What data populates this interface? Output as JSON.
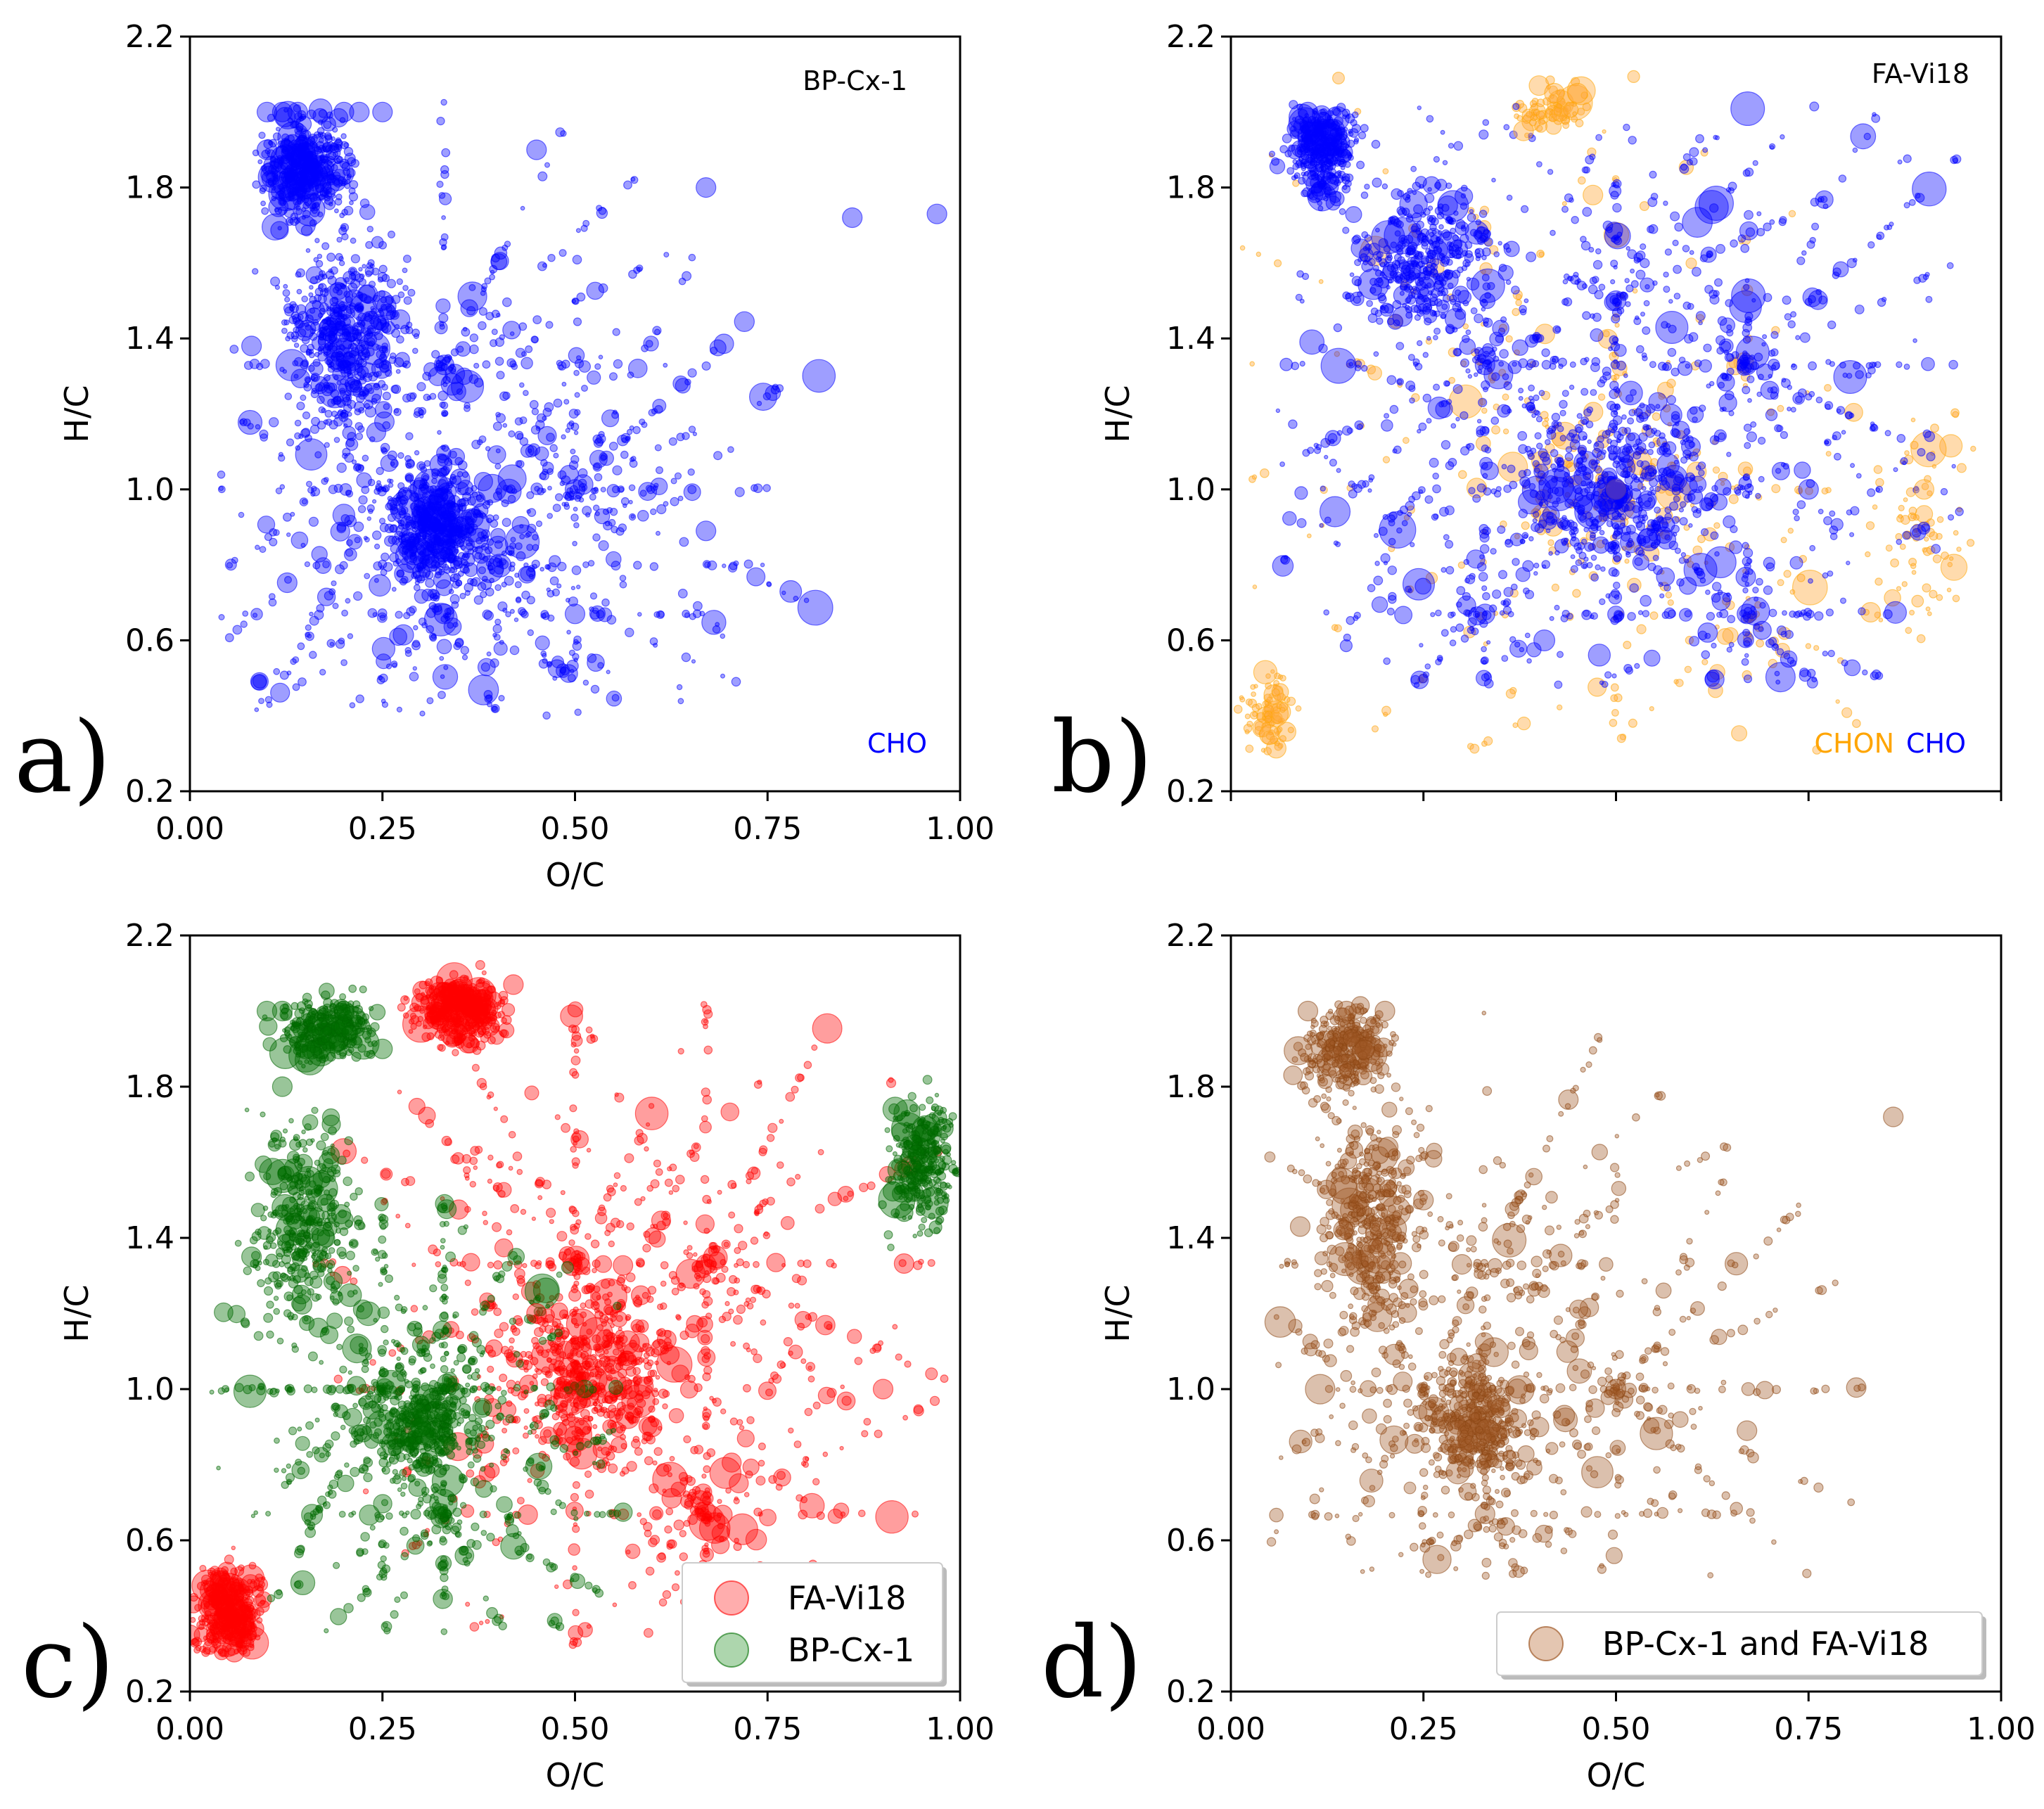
{
  "figure": {
    "panels": [
      {
        "id": "a",
        "letter": "a)",
        "tag": "BP-Cx-1",
        "legend": [],
        "groups": [
          {
            "name": "CHO",
            "color": "#0000ff",
            "fill": "rgba(0,0,255,0.38)",
            "stroke": "#0000ff",
            "label": "CHO"
          }
        ]
      },
      {
        "id": "b",
        "letter": "b)",
        "tag": "FA-Vi18",
        "legend": [],
        "groups": [
          {
            "name": "CHON",
            "color": "#ffa500",
            "fill": "rgba(255,170,60,0.42)",
            "stroke": "#ffa500",
            "label": "CHON"
          },
          {
            "name": "CHO",
            "color": "#0000ff",
            "fill": "rgba(0,0,255,0.38)",
            "stroke": "#0000ff",
            "label": "CHO"
          }
        ]
      },
      {
        "id": "c",
        "letter": "c)",
        "tag": "",
        "legend": [
          {
            "label": "FA-Vi18",
            "fill": "rgba(255,0,0,0.32)",
            "stroke": "rgba(255,0,0,0.6)"
          },
          {
            "label": "BP-Cx-1",
            "fill": "rgba(0,128,0,0.32)",
            "stroke": "rgba(0,110,0,0.6)"
          }
        ],
        "groups": [
          {
            "name": "FA-Vi18",
            "fill": "rgba(255,0,0,0.38)",
            "stroke": "#ff0000"
          },
          {
            "name": "BP-Cx-1",
            "fill": "rgba(0,110,0,0.40)",
            "stroke": "#006400"
          }
        ]
      },
      {
        "id": "d",
        "letter": "d)",
        "tag": "",
        "legend": [
          {
            "label": "BP-Cx-1 and FA-Vi18",
            "fill": "rgba(190,120,70,0.42)",
            "stroke": "rgba(160,90,40,0.7)"
          }
        ],
        "groups": [
          {
            "name": "BP-Cx-1 and FA-Vi18",
            "fill": "rgba(160,90,40,0.38)",
            "stroke": "#8b4513"
          }
        ]
      }
    ]
  },
  "chart_data": [
    {
      "type": "scatter",
      "panel": "a",
      "title": "BP-Cx-1",
      "xlabel": "O/C",
      "ylabel": "H/C",
      "xlim": [
        0,
        1
      ],
      "ylim": [
        0.2,
        2.2
      ],
      "xticks": [
        "0.00",
        "0.25",
        "0.50",
        "0.75",
        "1.00"
      ],
      "yticks": [
        "0.2",
        "0.6",
        "1.0",
        "1.4",
        "1.8",
        "2.2"
      ],
      "series": [
        {
          "name": "CHO",
          "x": [
            0.33,
            0.5,
            0.1,
            0.12,
            0.14,
            0.2,
            0.22,
            0.25,
            0.1,
            0.08,
            0.15,
            0.3,
            0.35,
            0.4,
            0.45,
            0.33,
            0.25,
            0.67,
            0.5,
            0.67,
            0.86,
            0.97
          ],
          "y": [
            0.67,
            1.0,
            2.0,
            2.0,
            2.0,
            2.0,
            2.0,
            2.0,
            1.9,
            1.38,
            1.7,
            0.95,
            0.9,
            0.85,
            1.9,
            1.33,
            1.5,
            0.89,
            0.67,
            1.8,
            1.72,
            1.73
          ]
        }
      ]
    },
    {
      "type": "scatter",
      "panel": "b",
      "title": "FA-Vi18",
      "xlabel": "",
      "ylabel": "H/C",
      "xlim": [
        0,
        1
      ],
      "ylim": [
        0.2,
        2.2
      ],
      "xticks": [],
      "yticks": [
        "0.2",
        "0.6",
        "1.0",
        "1.4",
        "1.8",
        "2.2"
      ],
      "series": [
        {
          "name": "CHON",
          "x": [
            0.4,
            0.42,
            0.45,
            0.38,
            0.47,
            0.5,
            0.9,
            0.05
          ],
          "y": [
            2.07,
            2.05,
            2.05,
            1.95,
            1.78,
            1.0,
            1.0,
            0.35
          ]
        },
        {
          "name": "CHO",
          "x": [
            0.5,
            0.33,
            0.67,
            0.33,
            0.67,
            0.1,
            0.5,
            0.75
          ],
          "y": [
            1.0,
            1.33,
            1.33,
            0.67,
            0.67,
            2.0,
            1.5,
            1.0
          ]
        }
      ]
    },
    {
      "type": "scatter",
      "panel": "c",
      "xlabel": "O/C",
      "ylabel": "H/C",
      "xlim": [
        0,
        1
      ],
      "ylim": [
        0.2,
        2.2
      ],
      "xticks": [
        "0.00",
        "0.25",
        "0.50",
        "0.75",
        "1.00"
      ],
      "yticks": [
        "0.2",
        "0.6",
        "1.0",
        "1.4",
        "1.8",
        "2.2"
      ],
      "legend": [
        "FA-Vi18",
        "BP-Cx-1"
      ],
      "series": [
        {
          "name": "FA-Vi18",
          "x": [
            0.5,
            0.55,
            0.45,
            0.6,
            0.67,
            0.33,
            0.38,
            0.42,
            0.9,
            0.0
          ],
          "y": [
            1.0,
            1.1,
            1.2,
            0.9,
            1.33,
            2.05,
            2.05,
            2.07,
            1.0,
            0.35
          ]
        },
        {
          "name": "BP-Cx-1",
          "x": [
            0.1,
            0.12,
            0.15,
            0.2,
            0.25,
            0.3,
            0.33,
            0.08,
            0.12,
            0.18
          ],
          "y": [
            2.0,
            2.0,
            1.9,
            2.0,
            1.9,
            0.9,
            0.85,
            1.35,
            1.8,
            1.6
          ]
        }
      ]
    },
    {
      "type": "scatter",
      "panel": "d",
      "xlabel": "O/C",
      "ylabel": "H/C",
      "xlim": [
        0,
        1
      ],
      "ylim": [
        0.2,
        2.2
      ],
      "xticks": [
        "0.00",
        "0.25",
        "0.50",
        "0.75",
        "1.00"
      ],
      "yticks": [
        "0.2",
        "0.6",
        "1.0",
        "1.4",
        "1.8",
        "2.2"
      ],
      "legend": [
        "BP-Cx-1 and FA-Vi18"
      ],
      "series": [
        {
          "name": "BP-Cx-1 and FA-Vi18",
          "x": [
            0.1,
            0.15,
            0.2,
            0.25,
            0.3,
            0.33,
            0.35,
            0.4,
            0.5,
            0.67,
            0.86,
            0.09
          ],
          "y": [
            2.0,
            2.0,
            2.0,
            1.5,
            1.33,
            0.67,
            0.95,
            0.9,
            1.0,
            0.89,
            1.72,
            1.43
          ]
        }
      ]
    }
  ]
}
